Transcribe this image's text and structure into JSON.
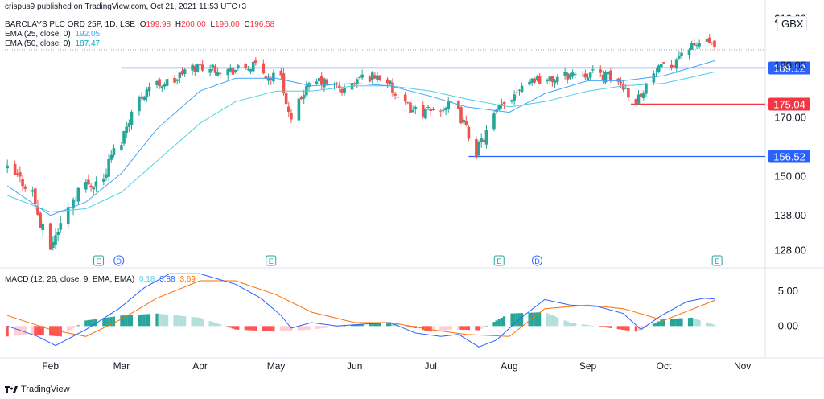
{
  "publisher_line": "crispus9 published on TradingView.com, Oct 21, 2021 11:53 UTC+3",
  "footer_brand": "TradingView",
  "currency": "GBX",
  "colors": {
    "up": "#26a69a",
    "down": "#ef5350",
    "ema25": "#42a5f5",
    "ema50": "#4dd0e1",
    "level_blue": "#2962ff",
    "level_red": "#f23645",
    "macd": "#2962ff",
    "signal": "#ff6d00",
    "hist_up_strong": "#26a69a",
    "hist_up_weak": "#b2dfdb",
    "hist_down_strong": "#ff5252",
    "hist_down_weak": "#ffcdd2"
  },
  "legend": {
    "symbol_line": "BARCLAYS PLC ORD 25P, 1D, LSE",
    "ohlc": [
      {
        "k": "O",
        "v": "199.98"
      },
      {
        "k": "H",
        "v": "200.00"
      },
      {
        "k": "L",
        "v": "196.00"
      },
      {
        "k": "C",
        "v": "196.58"
      }
    ],
    "ema25": {
      "label": "EMA (25, close, 0)",
      "value": "192.05"
    },
    "ema50": {
      "label": "EMA (50, close, 0)",
      "value": "187.47"
    }
  },
  "macd_legend": {
    "label": "MACD (12, 26, close, 9, EMA, EMA)",
    "hist": "0.18",
    "macd": "3.88",
    "signal": "3.69"
  },
  "events": [
    {
      "date": "2021-02-20",
      "icon": "E",
      "type": "earnings"
    },
    {
      "date": "2021-02-28",
      "icon": "D",
      "type": "dividend"
    },
    {
      "date": "2021-04-29",
      "icon": "E",
      "type": "earnings"
    },
    {
      "date": "2021-07-28",
      "icon": "E",
      "type": "earnings"
    },
    {
      "date": "2021-08-12",
      "icon": "D",
      "type": "dividend"
    },
    {
      "date": "2021-10-22",
      "icon": "E",
      "type": "earnings"
    }
  ],
  "chart_data": [
    {
      "type": "candlestick",
      "title": "BARCLAYS PLC ORD 25P, 1D, LSE",
      "x_ticks": [
        "Feb",
        "Mar",
        "Apr",
        "May",
        "Jun",
        "Jul",
        "Aug",
        "Sep",
        "Oct",
        "Nov"
      ],
      "y_ticks": [
        128.0,
        138.0,
        150.0,
        170.0,
        190.0,
        210.0
      ],
      "ylim": [
        124,
        212
      ],
      "y_scale": "log",
      "levels": [
        {
          "value": 189.12,
          "label": "189.12",
          "color": "blue",
          "from": "2021-03-01",
          "to": "2021-11-05"
        },
        {
          "value": 175.04,
          "label": "175.04",
          "color": "red",
          "from": "2021-09-18",
          "to": "2021-11-05"
        },
        {
          "value": 156.52,
          "label": "156.52",
          "color": "blue",
          "from": "2021-07-16",
          "to": "2021-11-05"
        }
      ],
      "close_series": [
        [
          "2021-01-15",
          152
        ],
        [
          "2021-01-20",
          149
        ],
        [
          "2021-01-25",
          145
        ],
        [
          "2021-01-28",
          135
        ],
        [
          "2021-02-01",
          129
        ],
        [
          "2021-02-04",
          134
        ],
        [
          "2021-02-08",
          140
        ],
        [
          "2021-02-12",
          146
        ],
        [
          "2021-02-17",
          148
        ],
        [
          "2021-02-22",
          149
        ],
        [
          "2021-02-25",
          157
        ],
        [
          "2021-03-01",
          162
        ],
        [
          "2021-03-04",
          170
        ],
        [
          "2021-03-08",
          177
        ],
        [
          "2021-03-12",
          182
        ],
        [
          "2021-03-17",
          183
        ],
        [
          "2021-03-22",
          184
        ],
        [
          "2021-03-26",
          188
        ],
        [
          "2021-04-01",
          190
        ],
        [
          "2021-04-07",
          189
        ],
        [
          "2021-04-13",
          188
        ],
        [
          "2021-04-19",
          189
        ],
        [
          "2021-04-23",
          190
        ],
        [
          "2021-04-28",
          185
        ],
        [
          "2021-05-03",
          187
        ],
        [
          "2021-05-05",
          175
        ],
        [
          "2021-05-07",
          168
        ],
        [
          "2021-05-12",
          180
        ],
        [
          "2021-05-18",
          184
        ],
        [
          "2021-05-24",
          182
        ],
        [
          "2021-05-28",
          180
        ],
        [
          "2021-06-03",
          185
        ],
        [
          "2021-06-09",
          186
        ],
        [
          "2021-06-14",
          184
        ],
        [
          "2021-06-18",
          176
        ],
        [
          "2021-06-24",
          173
        ],
        [
          "2021-06-30",
          172
        ],
        [
          "2021-07-06",
          174
        ],
        [
          "2021-07-10",
          175
        ],
        [
          "2021-07-14",
          168
        ],
        [
          "2021-07-19",
          158
        ],
        [
          "2021-07-22",
          163
        ],
        [
          "2021-07-27",
          172
        ],
        [
          "2021-08-02",
          178
        ],
        [
          "2021-08-06",
          183
        ],
        [
          "2021-08-11",
          185
        ],
        [
          "2021-08-17",
          184
        ],
        [
          "2021-08-23",
          186
        ],
        [
          "2021-08-27",
          187
        ],
        [
          "2021-09-02",
          187
        ],
        [
          "2021-09-08",
          186
        ],
        [
          "2021-09-14",
          183
        ],
        [
          "2021-09-20",
          176
        ],
        [
          "2021-09-23",
          181
        ],
        [
          "2021-09-28",
          188
        ],
        [
          "2021-10-04",
          190
        ],
        [
          "2021-10-08",
          196
        ],
        [
          "2021-10-13",
          198
        ],
        [
          "2021-10-18",
          201
        ],
        [
          "2021-10-21",
          196.58
        ]
      ],
      "ema25_series": [
        [
          "2021-01-15",
          147
        ],
        [
          "2021-02-01",
          138
        ],
        [
          "2021-02-15",
          142
        ],
        [
          "2021-03-01",
          151
        ],
        [
          "2021-03-15",
          166
        ],
        [
          "2021-04-01",
          180
        ],
        [
          "2021-04-15",
          185
        ],
        [
          "2021-05-01",
          185
        ],
        [
          "2021-05-15",
          182
        ],
        [
          "2021-06-01",
          183
        ],
        [
          "2021-06-15",
          182
        ],
        [
          "2021-07-01",
          178
        ],
        [
          "2021-07-15",
          174
        ],
        [
          "2021-08-01",
          172
        ],
        [
          "2021-08-15",
          179
        ],
        [
          "2021-09-01",
          184
        ],
        [
          "2021-09-15",
          184
        ],
        [
          "2021-10-01",
          186
        ],
        [
          "2021-10-21",
          192.05
        ]
      ],
      "ema50_series": [
        [
          "2021-01-15",
          144
        ],
        [
          "2021-02-01",
          139
        ],
        [
          "2021-02-15",
          140
        ],
        [
          "2021-03-01",
          145
        ],
        [
          "2021-03-15",
          155
        ],
        [
          "2021-04-01",
          168
        ],
        [
          "2021-04-15",
          176
        ],
        [
          "2021-05-01",
          180
        ],
        [
          "2021-05-15",
          180
        ],
        [
          "2021-06-01",
          182
        ],
        [
          "2021-06-15",
          182
        ],
        [
          "2021-07-01",
          180
        ],
        [
          "2021-07-15",
          177
        ],
        [
          "2021-08-01",
          174
        ],
        [
          "2021-08-15",
          176
        ],
        [
          "2021-09-01",
          180
        ],
        [
          "2021-09-15",
          182
        ],
        [
          "2021-10-01",
          183
        ],
        [
          "2021-10-21",
          187.47
        ]
      ]
    },
    {
      "type": "macd",
      "title": "MACD (12, 26, close, 9, EMA, EMA)",
      "y_ticks": [
        0.0,
        5.0
      ],
      "ylim": [
        -4,
        8
      ],
      "macd_series": [
        [
          "2021-01-15",
          0
        ],
        [
          "2021-01-27",
          -1.5
        ],
        [
          "2021-02-03",
          -2.8
        ],
        [
          "2021-02-15",
          -0.5
        ],
        [
          "2021-02-28",
          2.5
        ],
        [
          "2021-03-10",
          5.5
        ],
        [
          "2021-03-20",
          7.5
        ],
        [
          "2021-04-01",
          7.5
        ],
        [
          "2021-04-15",
          6
        ],
        [
          "2021-04-25",
          4
        ],
        [
          "2021-05-03",
          1.5
        ],
        [
          "2021-05-07",
          -0.3
        ],
        [
          "2021-05-15",
          0.5
        ],
        [
          "2021-05-25",
          0
        ],
        [
          "2021-06-05",
          0.3
        ],
        [
          "2021-06-15",
          0.5
        ],
        [
          "2021-06-25",
          -1
        ],
        [
          "2021-07-05",
          -1.5
        ],
        [
          "2021-07-12",
          -1.2
        ],
        [
          "2021-07-20",
          -3
        ],
        [
          "2021-07-27",
          -2
        ],
        [
          "2021-08-05",
          1
        ],
        [
          "2021-08-15",
          3.8
        ],
        [
          "2021-08-25",
          3
        ],
        [
          "2021-09-05",
          2.8
        ],
        [
          "2021-09-15",
          1.8
        ],
        [
          "2021-09-22",
          -0.5
        ],
        [
          "2021-09-30",
          1.5
        ],
        [
          "2021-10-10",
          3.5
        ],
        [
          "2021-10-17",
          4
        ],
        [
          "2021-10-21",
          3.88
        ]
      ],
      "signal_series": [
        [
          "2021-01-15",
          1.5
        ],
        [
          "2021-02-01",
          -0.5
        ],
        [
          "2021-02-15",
          -1.5
        ],
        [
          "2021-03-01",
          1
        ],
        [
          "2021-03-15",
          4
        ],
        [
          "2021-04-01",
          6.5
        ],
        [
          "2021-04-15",
          6.5
        ],
        [
          "2021-05-01",
          4.5
        ],
        [
          "2021-05-15",
          2
        ],
        [
          "2021-06-01",
          0.5
        ],
        [
          "2021-06-15",
          0.5
        ],
        [
          "2021-07-01",
          -0.5
        ],
        [
          "2021-07-15",
          -1.2
        ],
        [
          "2021-08-01",
          -1.5
        ],
        [
          "2021-08-15",
          2.5
        ],
        [
          "2021-09-01",
          3
        ],
        [
          "2021-09-15",
          2.5
        ],
        [
          "2021-10-01",
          0.8
        ],
        [
          "2021-10-21",
          3.69
        ]
      ],
      "hist_series": [
        [
          "2021-01-15",
          -1.5
        ],
        [
          "2021-01-25",
          -1.2
        ],
        [
          "2021-02-05",
          -1.5
        ],
        [
          "2021-02-15",
          0.8
        ],
        [
          "2021-03-01",
          1.5
        ],
        [
          "2021-03-15",
          1.8
        ],
        [
          "2021-04-01",
          1.2
        ],
        [
          "2021-04-15",
          -0.5
        ],
        [
          "2021-05-01",
          -0.8
        ],
        [
          "2021-05-15",
          -0.5
        ],
        [
          "2021-06-01",
          0.2
        ],
        [
          "2021-06-15",
          0.5
        ],
        [
          "2021-07-01",
          -0.8
        ],
        [
          "2021-07-10",
          -0.5
        ],
        [
          "2021-07-20",
          -0.6
        ],
        [
          "2021-08-01",
          1.8
        ],
        [
          "2021-08-15",
          2
        ],
        [
          "2021-08-25",
          0.5
        ],
        [
          "2021-09-10",
          -0.3
        ],
        [
          "2021-09-20",
          -0.8
        ],
        [
          "2021-10-01",
          1
        ],
        [
          "2021-10-12",
          1.2
        ],
        [
          "2021-10-21",
          0.18
        ]
      ]
    }
  ]
}
